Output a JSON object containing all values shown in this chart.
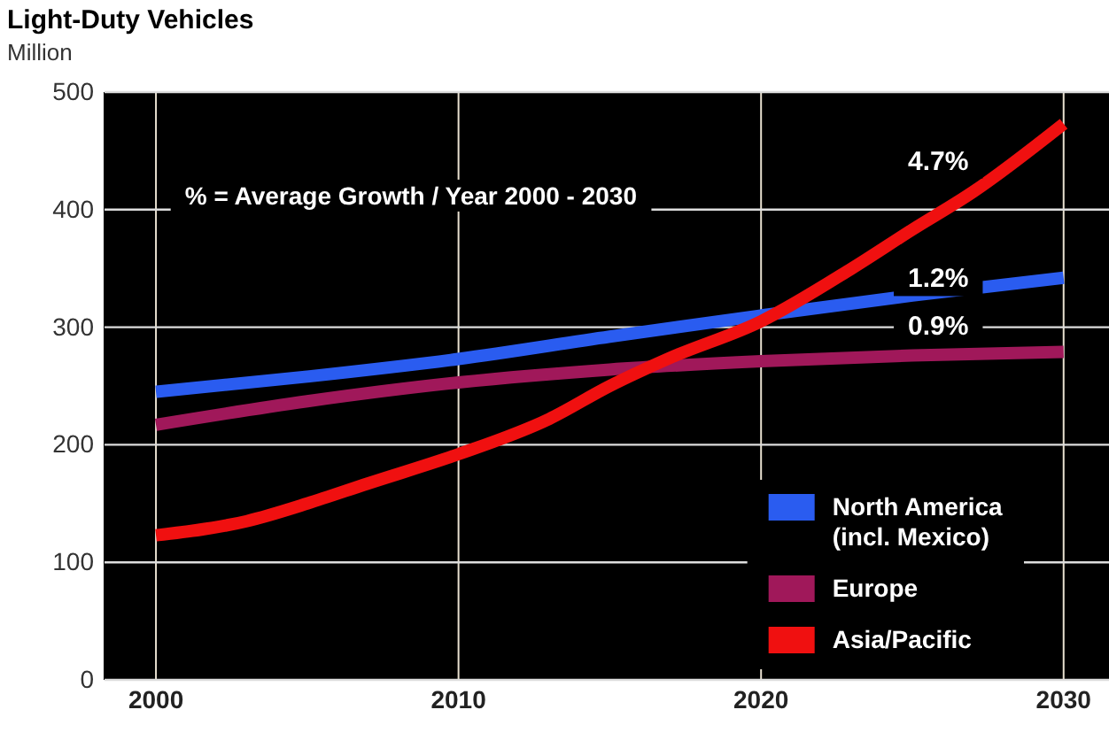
{
  "chart_data": {
    "type": "line",
    "title": "Light-Duty Vehicles",
    "ylabel": "Million",
    "xlim": [
      1998.3,
      2031.5
    ],
    "xticks": [
      2000,
      2010,
      2020,
      2030
    ],
    "ylim": [
      0,
      500
    ],
    "yticks": [
      0,
      100,
      200,
      300,
      400,
      500
    ],
    "grid": true,
    "legend": "bottom right",
    "series": [
      {
        "name": "North America\n(incl. Mexico)",
        "color": "#2a5cf0",
        "x": [
          2000,
          2005,
          2010,
          2015,
          2020,
          2025,
          2030
        ],
        "values": [
          245,
          258,
          273,
          292,
          310,
          327,
          342
        ]
      },
      {
        "name": "Europe",
        "color": "#a0185a",
        "x": [
          2000,
          2005,
          2010,
          2015,
          2020,
          2025,
          2030
        ],
        "values": [
          217,
          237,
          253,
          264,
          271,
          276,
          279
        ]
      },
      {
        "name": "Asia/Pacific",
        "color": "#f01010",
        "x": [
          2000,
          2003,
          2005,
          2007,
          2010,
          2013,
          2015,
          2017,
          2020,
          2023,
          2025,
          2027,
          2030
        ],
        "values": [
          123,
          135,
          150,
          167,
          192,
          222,
          250,
          274,
          305,
          350,
          383,
          415,
          473
        ]
      }
    ],
    "annotations": [
      "% =  Average Growth / Year 2000 - 2030",
      "4.7%",
      "1.2%",
      "0.9%"
    ]
  }
}
